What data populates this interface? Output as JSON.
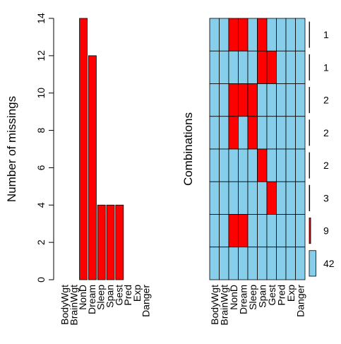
{
  "chart_data": [
    {
      "type": "bar",
      "ylabel": "Number of missings",
      "categories": [
        "BodyWgt",
        "BrainWgt",
        "NonD",
        "Dream",
        "Sleep",
        "Span",
        "Gest",
        "Pred",
        "Exp",
        "Danger"
      ],
      "values": [
        0,
        0,
        14,
        12,
        4,
        4,
        4,
        0,
        0,
        0
      ],
      "ylim": [
        0,
        14
      ],
      "yticks": [
        0,
        2,
        4,
        6,
        8,
        10,
        12,
        14
      ],
      "bar_color": "#ff0000"
    },
    {
      "type": "heatmap",
      "ylabel": "Combinations",
      "variables": [
        "BodyWgt",
        "BrainWgt",
        "NonD",
        "Dream",
        "Sleep",
        "Span",
        "Gest",
        "Pred",
        "Exp",
        "Danger"
      ],
      "patterns": [
        [
          0,
          0,
          1,
          1,
          0,
          1,
          0,
          0,
          0,
          0
        ],
        [
          0,
          0,
          0,
          0,
          0,
          1,
          1,
          0,
          0,
          0
        ],
        [
          0,
          0,
          1,
          1,
          1,
          0,
          0,
          0,
          0,
          0
        ],
        [
          0,
          0,
          1,
          0,
          1,
          0,
          0,
          0,
          0,
          0
        ],
        [
          0,
          0,
          0,
          0,
          0,
          1,
          0,
          0,
          0,
          0
        ],
        [
          0,
          0,
          0,
          0,
          0,
          0,
          1,
          0,
          0,
          0
        ],
        [
          0,
          0,
          1,
          1,
          0,
          0,
          0,
          0,
          0,
          0
        ],
        [
          0,
          0,
          0,
          0,
          0,
          0,
          0,
          0,
          0,
          0
        ]
      ],
      "counts": [
        1,
        1,
        2,
        2,
        2,
        3,
        9,
        42
      ],
      "count_labels": [
        "1",
        "1",
        "2",
        "2",
        "2",
        "3",
        "9",
        "42"
      ],
      "colors": {
        "observed": "#87ceeb",
        "missing": "#ff0000",
        "grid": "#000000"
      }
    }
  ]
}
